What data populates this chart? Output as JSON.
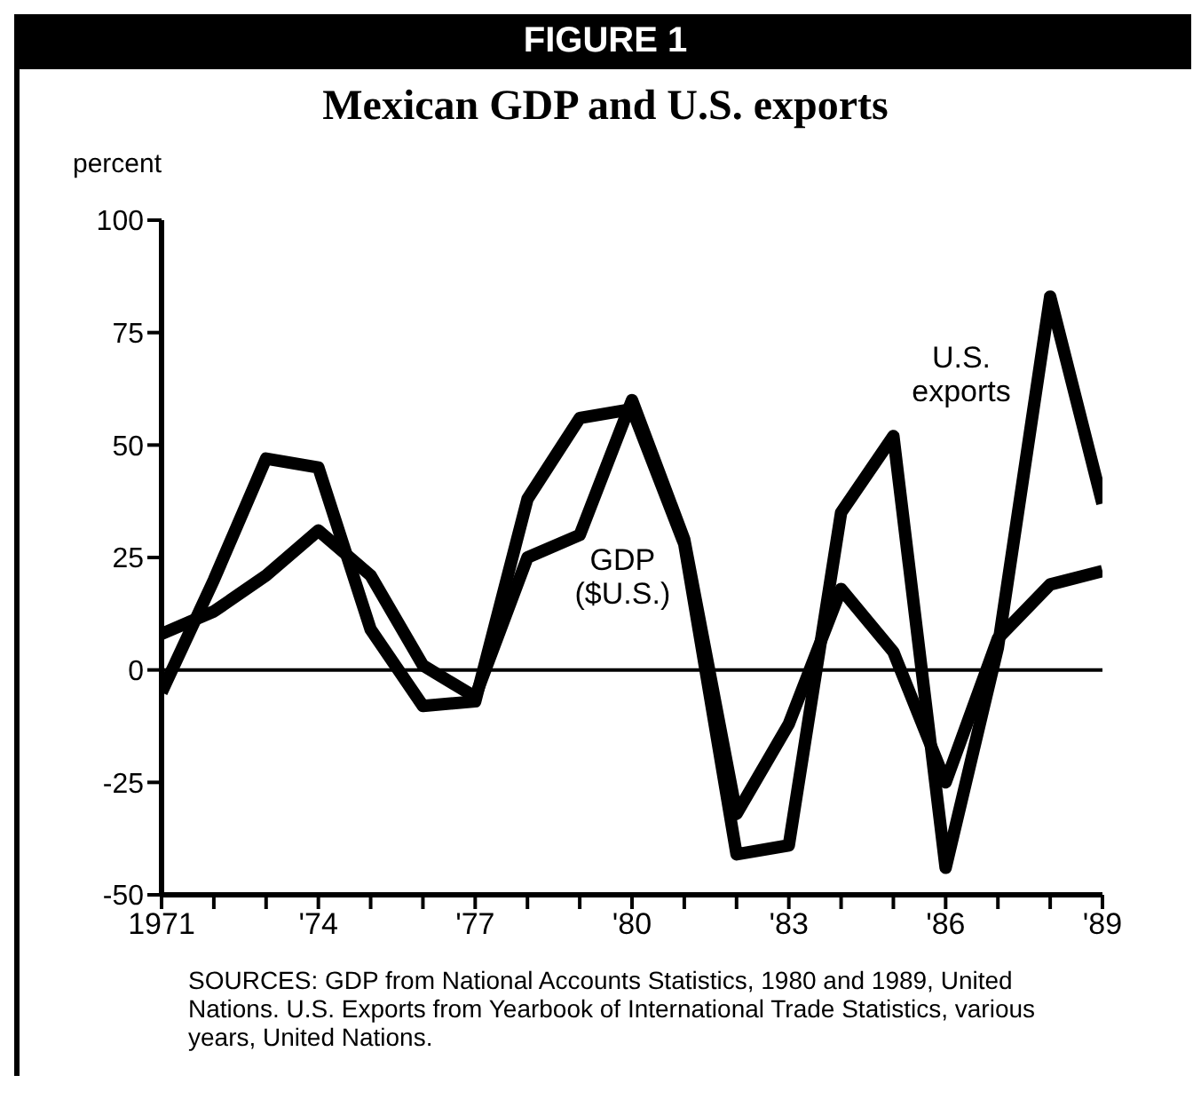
{
  "chart_data": {
    "type": "line",
    "title": "FIGURE 1",
    "subtitle": "Mexican GDP and U.S. exports",
    "ylabel": "percent",
    "x": [
      1971,
      1972,
      1973,
      1974,
      1975,
      1976,
      1977,
      1978,
      1979,
      1980,
      1981,
      1982,
      1983,
      1984,
      1985,
      1986,
      1987,
      1988,
      1989
    ],
    "series": [
      {
        "name": "U.S. exports",
        "color": "#000000",
        "values": [
          -5,
          20,
          47,
          45,
          9,
          -8,
          -7,
          38,
          56,
          58,
          28,
          -41,
          -39,
          35,
          52,
          -44,
          5,
          83,
          37
        ]
      },
      {
        "name": "GDP ($U.S.)",
        "color": "#000000",
        "values": [
          8,
          13,
          21,
          31,
          21,
          1,
          -6,
          25,
          30,
          60,
          29,
          -32,
          -12,
          18,
          4,
          -25,
          7,
          19,
          22
        ]
      }
    ],
    "xlim": [
      1971,
      1989
    ],
    "xticks": [
      1971,
      {
        "value": 1972,
        "label": null
      },
      {
        "value": 1973,
        "label": null
      },
      {
        "value": 1974,
        "label": "'74"
      },
      {
        "value": 1975,
        "label": null
      },
      {
        "value": 1976,
        "label": null
      },
      {
        "value": 1977,
        "label": "'77"
      },
      {
        "value": 1978,
        "label": null
      },
      {
        "value": 1979,
        "label": null
      },
      {
        "value": 1980,
        "label": "'80"
      },
      {
        "value": 1981,
        "label": null
      },
      {
        "value": 1982,
        "label": null
      },
      {
        "value": 1983,
        "label": "'83"
      },
      {
        "value": 1984,
        "label": null
      },
      {
        "value": 1985,
        "label": null
      },
      {
        "value": 1986,
        "label": "'86"
      },
      {
        "value": 1987,
        "label": null
      },
      {
        "value": 1988,
        "label": null
      },
      {
        "value": 1989,
        "label": "'89"
      }
    ],
    "ylim": [
      -50,
      100
    ],
    "yticks": [
      -50,
      -25,
      0,
      25,
      50,
      75,
      100
    ],
    "ref_lines": [
      {
        "axis": "y",
        "value": 0,
        "color": "#000000"
      }
    ],
    "grid": false,
    "legend": false,
    "marker": "none",
    "line_style": "solid",
    "annotations": [
      "SOURCES: GDP from National Accounts Statistics, 1980 and 1989, United Nations. U.S. Exports from Yearbook of International Trade Statistics, various years, United Nations."
    ]
  }
}
